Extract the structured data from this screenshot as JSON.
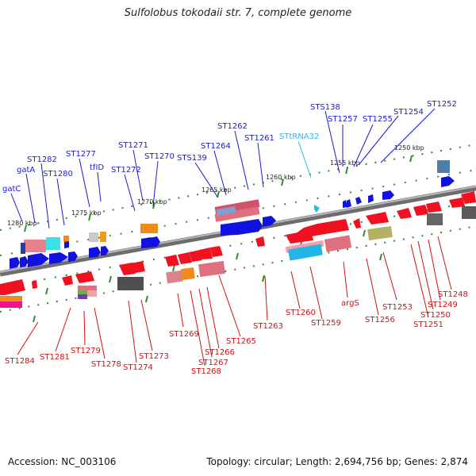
{
  "title": "Sulfolobus tokodaii str. 7, complete genome",
  "footer": {
    "accession": "Accession: NC_003106",
    "summary": "Topology: circular; Length: 2,694,756 bp; Genes: 2,874"
  },
  "ruler_ticks": [
    "1250 kbp",
    "1255 kbp",
    "1260 kbp",
    "1265 kbp",
    "1270 kbp",
    "1275 kbp",
    "1280 kbp"
  ],
  "genes_top": [
    "STS138",
    "ST1257",
    "ST1255",
    "ST1254",
    "ST1252",
    "ST1262",
    "ST1261",
    "STtRNA32",
    "ST1264",
    "STS139",
    "ST1271",
    "ST1270",
    "ST1272",
    "ST1277",
    "tfID",
    "ST1282",
    "gatA",
    "ST1280",
    "gatC"
  ],
  "genes_bottom": [
    "ST1284",
    "ST1281",
    "ST1279",
    "ST1278",
    "ST1274",
    "ST1273",
    "ST1269",
    "ST1268",
    "ST1267",
    "ST1266",
    "ST1265",
    "ST1263",
    "ST1260",
    "ST1259",
    "argS",
    "ST1256",
    "ST1253",
    "ST1251",
    "ST1250",
    "ST1249",
    "ST1248"
  ],
  "colors": {
    "forward_label": "#1a1ad0",
    "reverse_label": "#d01010",
    "trna_label": "#33b5e5",
    "axis": "#8c8c8c",
    "tick": "#2f8f2f"
  }
}
